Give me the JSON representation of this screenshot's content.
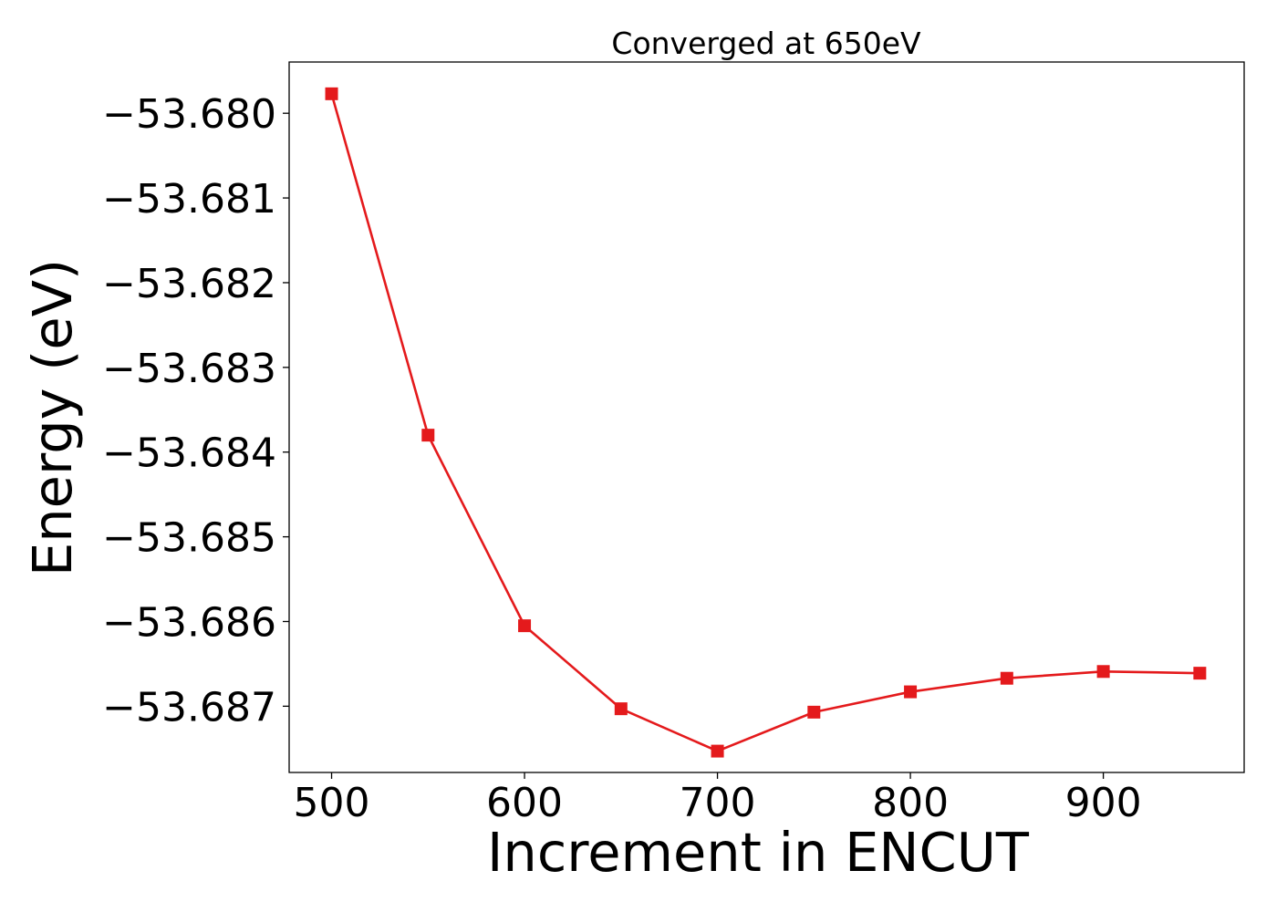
{
  "chart_data": {
    "type": "line",
    "title": "Converged at 650eV",
    "xlabel": "Increment in ENCUT",
    "ylabel": "Energy (eV)",
    "x": [
      500,
      550,
      600,
      650,
      700,
      750,
      800,
      850,
      900,
      950
    ],
    "series": [
      {
        "values": [
          -53.67977,
          -53.6838,
          -53.68605,
          -53.68703,
          -53.68753,
          -53.68707,
          -53.68683,
          -53.68667,
          -53.68659,
          -53.68661
        ],
        "color": "#e41a1c",
        "marker": "square"
      }
    ],
    "xlim": [
      478,
      973
    ],
    "ylim": [
      -53.687782,
      -53.679395
    ],
    "xticks": [
      500,
      600,
      700,
      800,
      900
    ],
    "xtick_labels": [
      "500",
      "600",
      "700",
      "800",
      "900"
    ],
    "yticks": [
      -53.68,
      -53.681,
      -53.682,
      -53.683,
      -53.684,
      -53.685,
      -53.686,
      -53.687
    ],
    "ytick_labels": [
      "−53.680",
      "−53.681",
      "−53.682",
      "−53.683",
      "−53.684",
      "−53.685",
      "−53.686",
      "−53.687"
    ],
    "grid": false,
    "legend": "none"
  }
}
